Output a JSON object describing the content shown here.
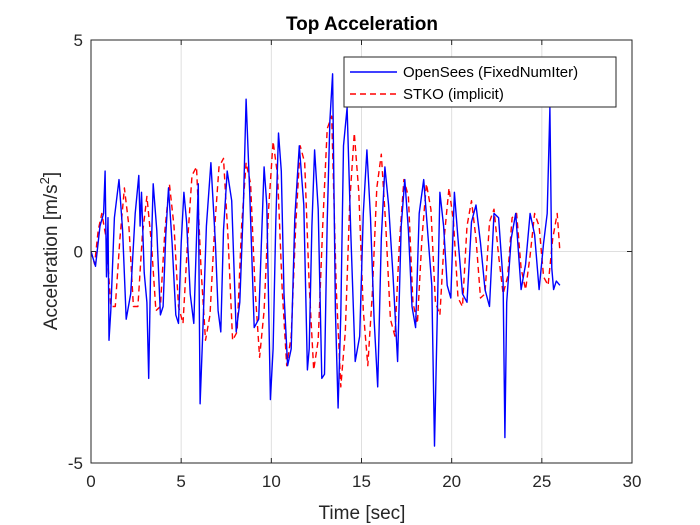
{
  "chart_data": {
    "type": "line",
    "title": "Top Acceleration",
    "xlabel": "Time [sec]",
    "ylabel_main": "Acceleration [m/s",
    "ylabel_sup": "2",
    "ylabel_close": "]",
    "xlim": [
      0,
      30
    ],
    "ylim": [
      -5,
      5
    ],
    "xticks": [
      0,
      5,
      10,
      15,
      20,
      25,
      30
    ],
    "yticks": [
      -5,
      0,
      5
    ],
    "xtick_labels": [
      "0",
      "5",
      "10",
      "15",
      "20",
      "25",
      "30"
    ],
    "ytick_labels": [
      "-5",
      "0",
      "5"
    ],
    "grid": true,
    "legend_position": "top-right",
    "series": [
      {
        "name": "OpenSees (FixedNumIter)",
        "color": "#0000ff",
        "style": "solid",
        "x": [
          0.0,
          0.25,
          0.5,
          0.7,
          0.78,
          0.86,
          0.94,
          1.0,
          1.1,
          1.3,
          1.55,
          1.75,
          1.95,
          2.2,
          2.45,
          2.65,
          2.72,
          2.8,
          2.95,
          3.1,
          3.2,
          3.3,
          3.45,
          3.65,
          3.85,
          4.0,
          4.15,
          4.3,
          4.5,
          4.7,
          4.85,
          5.0,
          5.15,
          5.3,
          5.5,
          5.7,
          5.85,
          5.95,
          6.05,
          6.2,
          6.4,
          6.65,
          6.9,
          7.05,
          7.2,
          7.35,
          7.55,
          7.8,
          8.05,
          8.25,
          8.45,
          8.6,
          8.8,
          9.05,
          9.3,
          9.5,
          9.6,
          9.75,
          9.95,
          10.1,
          10.25,
          10.4,
          10.55,
          10.7,
          10.9,
          11.1,
          11.3,
          11.55,
          11.8,
          12.0,
          12.1,
          12.25,
          12.4,
          12.6,
          12.8,
          12.95,
          13.1,
          13.25,
          13.4,
          13.55,
          13.7,
          13.85,
          14.0,
          14.2,
          14.4,
          14.65,
          14.9,
          15.1,
          15.3,
          15.5,
          15.7,
          15.9,
          16.1,
          16.3,
          16.5,
          16.75,
          17.0,
          17.2,
          17.4,
          17.6,
          17.8,
          18.0,
          18.2,
          18.45,
          18.7,
          18.9,
          19.05,
          19.2,
          19.35,
          19.55,
          19.75,
          19.95,
          20.15,
          20.35,
          20.6,
          20.85,
          21.1,
          21.35,
          21.6,
          21.85,
          22.1,
          22.35,
          22.6,
          22.85,
          22.95,
          23.05,
          23.3,
          23.55,
          23.85,
          24.1,
          24.35,
          24.6,
          24.85,
          25.1,
          25.3,
          25.45,
          25.55,
          25.65,
          25.8,
          26.0
        ],
        "y": [
          0.0,
          -0.35,
          0.6,
          0.9,
          1.9,
          -0.6,
          0.8,
          -2.1,
          -1.4,
          0.8,
          1.7,
          0.5,
          -1.6,
          -1.0,
          0.9,
          1.8,
          0.6,
          1.4,
          -0.5,
          -1.2,
          -3.0,
          -0.6,
          1.6,
          0.5,
          -1.5,
          -1.3,
          0.4,
          1.5,
          0.2,
          -1.5,
          -1.7,
          0.2,
          1.4,
          0.7,
          -1.0,
          -1.7,
          0.3,
          1.6,
          -3.6,
          -1.9,
          0.6,
          2.1,
          0.2,
          -1.4,
          -1.9,
          0.5,
          1.9,
          1.2,
          -1.9,
          -1.2,
          1.1,
          3.6,
          1.4,
          -1.8,
          -1.6,
          0.8,
          2.0,
          1.1,
          -3.5,
          -2.3,
          0.7,
          2.8,
          1.9,
          -1.0,
          -2.7,
          -2.3,
          0.8,
          2.5,
          1.1,
          -2.8,
          -2.3,
          0.6,
          2.4,
          1.0,
          -3.0,
          -2.9,
          0.7,
          3.1,
          4.2,
          -1.4,
          -3.7,
          -1.5,
          2.5,
          3.4,
          0.5,
          -2.6,
          -2.0,
          0.9,
          2.4,
          0.8,
          -1.6,
          -3.2,
          0.3,
          2.0,
          1.1,
          -0.6,
          -2.6,
          0.6,
          1.7,
          0.5,
          -1.3,
          -1.8,
          0.9,
          1.7,
          0.3,
          -0.8,
          -4.6,
          -1.6,
          1.4,
          0.6,
          -0.8,
          -1.1,
          1.4,
          0.3,
          -1.0,
          -1.2,
          0.7,
          1.1,
          0.2,
          -0.9,
          -1.3,
          0.9,
          0.8,
          -0.7,
          -4.4,
          -1.2,
          0.3,
          0.9,
          -0.9,
          -0.3,
          0.9,
          0.4,
          -0.9,
          0.2,
          0.9,
          3.4,
          -0.4,
          -0.9,
          -0.7,
          -0.8
        ]
      },
      {
        "name": "STKO (implicit)",
        "color": "#ff0000",
        "style": "dashed",
        "x": [
          0.0,
          0.2,
          0.4,
          0.6,
          0.85,
          1.1,
          1.35,
          1.6,
          1.85,
          2.1,
          2.35,
          2.6,
          2.85,
          3.1,
          3.35,
          3.6,
          3.85,
          4.1,
          4.35,
          4.6,
          4.85,
          5.1,
          5.35,
          5.6,
          5.85,
          6.1,
          6.35,
          6.6,
          6.85,
          7.1,
          7.35,
          7.6,
          7.85,
          8.1,
          8.35,
          8.6,
          8.85,
          9.1,
          9.35,
          9.6,
          9.85,
          10.1,
          10.35,
          10.6,
          10.85,
          11.1,
          11.35,
          11.6,
          11.85,
          12.1,
          12.35,
          12.6,
          12.85,
          13.1,
          13.35,
          13.6,
          13.85,
          14.1,
          14.35,
          14.6,
          14.85,
          15.1,
          15.35,
          15.6,
          15.85,
          16.1,
          16.35,
          16.6,
          16.85,
          17.1,
          17.35,
          17.6,
          17.85,
          18.1,
          18.35,
          18.6,
          18.85,
          19.1,
          19.35,
          19.6,
          19.85,
          20.1,
          20.35,
          20.6,
          20.85,
          21.1,
          21.35,
          21.6,
          21.85,
          22.1,
          22.35,
          22.6,
          22.85,
          23.1,
          23.35,
          23.6,
          23.85,
          24.1,
          24.35,
          24.6,
          24.85,
          25.1,
          25.35,
          25.6,
          25.85,
          26.0
        ],
        "y": [
          0.0,
          -0.3,
          0.5,
          0.9,
          0.3,
          -1.3,
          -1.3,
          0.3,
          1.5,
          0.6,
          -1.3,
          -1.3,
          0.4,
          1.3,
          0.2,
          -1.4,
          -1.3,
          0.5,
          1.6,
          0.6,
          -1.3,
          -1.7,
          0.2,
          1.8,
          2.0,
          -0.4,
          -2.1,
          -1.5,
          0.5,
          2.0,
          2.2,
          0.3,
          -2.1,
          -1.9,
          0.6,
          2.1,
          1.6,
          -0.9,
          -2.5,
          -1.4,
          1.0,
          2.6,
          1.8,
          -0.9,
          -2.7,
          -2.0,
          0.6,
          2.5,
          2.1,
          -0.8,
          -2.8,
          -2.1,
          0.6,
          2.9,
          3.2,
          -0.9,
          -3.2,
          -1.9,
          1.2,
          2.8,
          1.4,
          -1.4,
          -2.7,
          -1.0,
          1.5,
          2.3,
          0.6,
          -1.6,
          -2.0,
          0.2,
          1.7,
          1.3,
          -1.2,
          -1.7,
          0.3,
          1.6,
          1.0,
          -1.2,
          -1.5,
          0.4,
          1.5,
          0.7,
          -1.1,
          -1.3,
          0.6,
          1.2,
          0.3,
          -1.1,
          -1.0,
          0.7,
          1.0,
          -0.1,
          -1.0,
          -0.6,
          0.8,
          0.9,
          -0.4,
          -0.9,
          -0.1,
          0.9,
          0.6,
          -0.6,
          -0.8,
          0.3,
          0.9,
          0.0
        ]
      }
    ]
  }
}
